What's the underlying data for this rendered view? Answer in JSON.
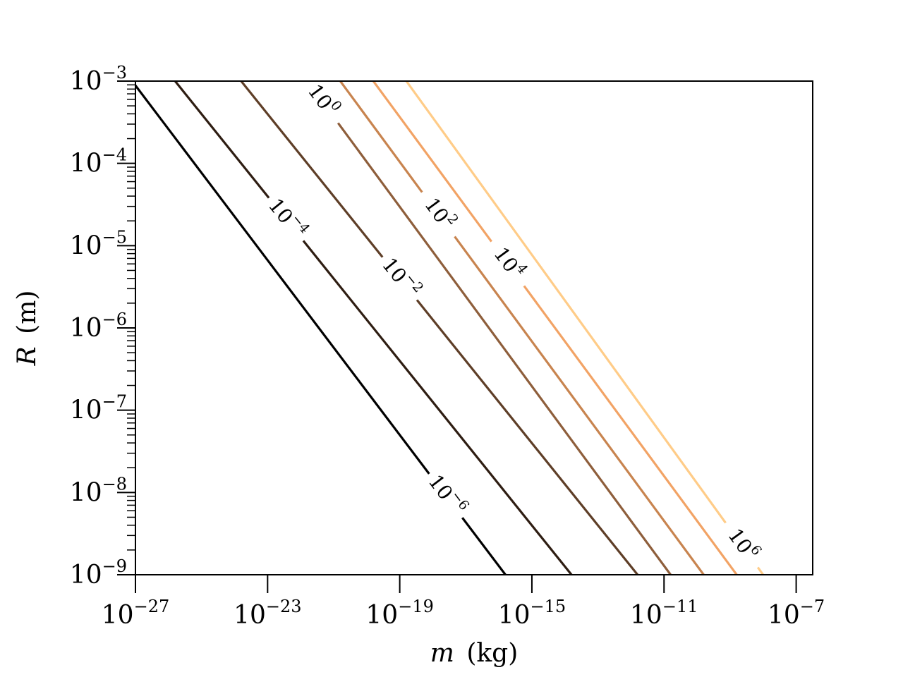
{
  "chart_data": {
    "type": "line",
    "subtype": "contour",
    "title": "",
    "xlabel": {
      "var": "m",
      "unit": "(kg)"
    },
    "ylabel": {
      "var": "R",
      "unit": "(m)"
    },
    "xscale": "log",
    "yscale": "log",
    "xlim_exp": [
      -27,
      -6.5
    ],
    "ylim_exp": [
      -9,
      -3
    ],
    "grid": false,
    "legend": "none",
    "x_ticks": [
      {
        "base": "10",
        "exp": "−27"
      },
      {
        "base": "10",
        "exp": "−23"
      },
      {
        "base": "10",
        "exp": "−19"
      },
      {
        "base": "10",
        "exp": "−15"
      },
      {
        "base": "10",
        "exp": "−11"
      },
      {
        "base": "10",
        "exp": "−7"
      }
    ],
    "x_tick_exps": [
      -27,
      -23,
      -19,
      -15,
      -11,
      -7
    ],
    "y_ticks": [
      {
        "base": "10",
        "exp": "−9"
      },
      {
        "base": "10",
        "exp": "−8"
      },
      {
        "base": "10",
        "exp": "−7"
      },
      {
        "base": "10",
        "exp": "−6"
      },
      {
        "base": "10",
        "exp": "−5"
      },
      {
        "base": "10",
        "exp": "−4"
      },
      {
        "base": "10",
        "exp": "−3"
      }
    ],
    "y_tick_exps": [
      -9,
      -8,
      -7,
      -6,
      -5,
      -4,
      -3
    ],
    "series": [
      {
        "label_base": "10",
        "label_exp": "−6",
        "color": "#000000",
        "x_exp_at_R_min": -15.8,
        "x_exp_at_R_max": -27.1
      },
      {
        "label_base": "10",
        "label_exp": "−4",
        "color": "#2e1d12",
        "x_exp_at_R_min": -13.8,
        "x_exp_at_R_max": -25.8
      },
      {
        "label_base": "10",
        "label_exp": "−2",
        "color": "#5e3e27",
        "x_exp_at_R_min": -11.8,
        "x_exp_at_R_max": -23.8
      },
      {
        "label_base": "10",
        "label_exp": "0",
        "color": "#8e5e3b",
        "x_exp_at_R_min": -10.8,
        "x_exp_at_R_max": -21.8
      },
      {
        "label_base": "10",
        "label_exp": "2",
        "color": "#c8844f",
        "x_exp_at_R_min": -9.8,
        "x_exp_at_R_max": -20.8
      },
      {
        "label_base": "10",
        "label_exp": "4",
        "color": "#f2a365",
        "x_exp_at_R_min": -8.8,
        "x_exp_at_R_max": -19.8
      },
      {
        "label_base": "10",
        "label_exp": "6",
        "color": "#ffcc88",
        "x_exp_at_R_min": -8.0,
        "x_exp_at_R_max": -18.8
      }
    ],
    "label_positions": [
      0.16,
      0.72,
      0.6,
      0.96,
      0.73,
      0.63,
      0.06
    ]
  }
}
